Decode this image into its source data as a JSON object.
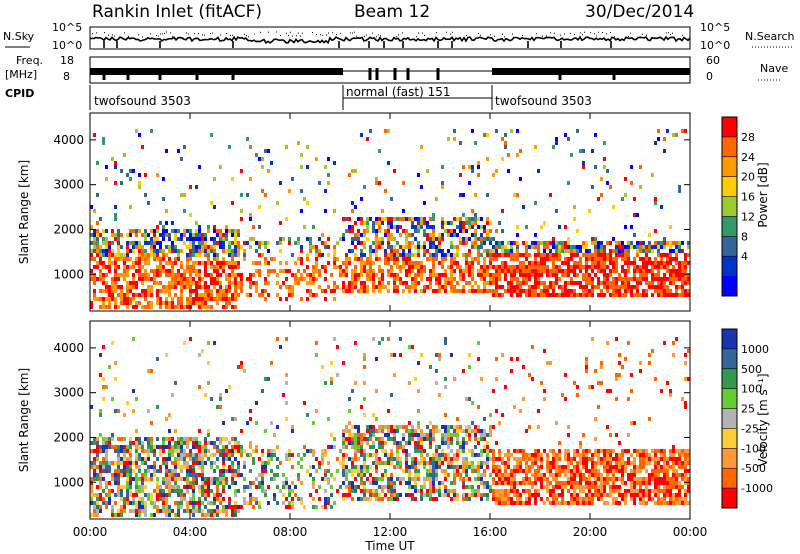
{
  "header": {
    "title": "Rankin Inlet (fitACF)",
    "beam": "Beam 12",
    "date": "30/Dec/2014"
  },
  "side_labels": {
    "nsky": "N.Sky",
    "nsearch": "N.Search",
    "freq_top": "Freq.",
    "freq_unit": "[MHz]",
    "nave": "Nave",
    "cpid": "CPID"
  },
  "noise_panel": {
    "left_ticks": [
      "10^5",
      "10^0"
    ],
    "right_ticks": [
      "10^5",
      "10^0"
    ]
  },
  "freq_panel": {
    "left_ticks": [
      "18",
      "8"
    ],
    "right_ticks": [
      "60",
      "0"
    ]
  },
  "cpid_segments": [
    {
      "label": "twofsound 3503",
      "start_hour": 0
    },
    {
      "label": "normal (fast) 151",
      "start_hour": 10
    },
    {
      "label": "twofsound 3503",
      "start_hour": 16
    }
  ],
  "chart_data": [
    {
      "type": "heatmap",
      "panel": "power",
      "ylabel": "Slant Range [km]",
      "y_ticks": [
        1000,
        2000,
        3000,
        4000
      ],
      "ylim": [
        180,
        4600
      ],
      "xlim_hours": [
        0,
        24
      ],
      "colorbar": {
        "label": "Power [dB]",
        "ticks": [
          "28",
          "24",
          "20",
          "16",
          "12",
          "8",
          "4"
        ],
        "colors": [
          "#ff0000",
          "#ff6600",
          "#ff9900",
          "#ffcc00",
          "#99cc33",
          "#339966",
          "#336699",
          "#0033cc",
          "#0000ff"
        ]
      }
    },
    {
      "type": "heatmap",
      "panel": "velocity",
      "ylabel": "Slant Range [km]",
      "y_ticks": [
        1000,
        2000,
        3000,
        4000
      ],
      "ylim": [
        180,
        4600
      ],
      "xlim_hours": [
        0,
        24
      ],
      "colorbar": {
        "label": "Velocity [m s⁻¹]",
        "ticks": [
          "1000",
          "500",
          "100",
          "25",
          "-25",
          "-100",
          "-500",
          "-1000"
        ],
        "colors": [
          "#1a33b3",
          "#336699",
          "#33994d",
          "#66cc33",
          "#b3b3b3",
          "#ffcc33",
          "#ff9933",
          "#ff6600",
          "#ff0000"
        ]
      }
    }
  ],
  "x_axis": {
    "ticks": [
      "00:00",
      "04:00",
      "08:00",
      "12:00",
      "16:00",
      "20:00",
      "00:00"
    ],
    "label": "Time UT"
  }
}
